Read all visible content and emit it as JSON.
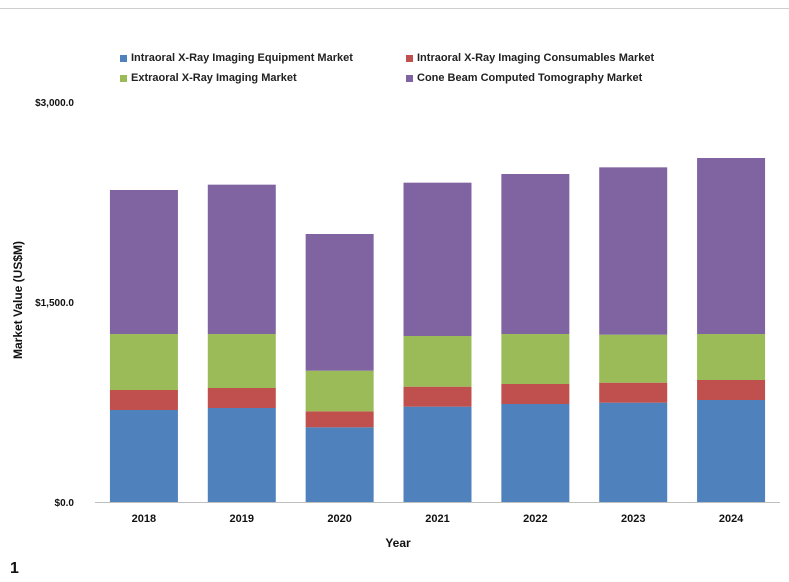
{
  "figure_label": "1",
  "chart_data": {
    "type": "bar",
    "stacked": true,
    "categories": [
      "2018",
      "2019",
      "2020",
      "2021",
      "2022",
      "2023",
      "2024"
    ],
    "series": [
      {
        "name": "Intraoral X-Ray Imaging Equipment Market",
        "color": "#4f81bd",
        "values": [
          690,
          705,
          560,
          715,
          735,
          745,
          765
        ]
      },
      {
        "name": "Intraoral X-Ray Imaging Consumables Market",
        "color": "#c0504d",
        "values": [
          150,
          150,
          120,
          150,
          150,
          150,
          150
        ]
      },
      {
        "name": "Extraoral X-Ray Imaging Market",
        "color": "#9bbb59",
        "values": [
          420,
          405,
          305,
          380,
          375,
          360,
          345
        ]
      },
      {
        "name": "Cone Beam Computed Tomography Market",
        "color": "#8064a2",
        "values": [
          1080,
          1120,
          1025,
          1150,
          1200,
          1255,
          1320
        ]
      }
    ],
    "ytick_labels": [
      "$0.0",
      "$1,500.0",
      "$3,000.0"
    ],
    "yticks": [
      0,
      1500,
      3000
    ],
    "ylim": [
      0,
      3000
    ],
    "xlabel": "Year",
    "ylabel": "Market Value (US$M)",
    "legend_position": "top",
    "grid": false
  }
}
